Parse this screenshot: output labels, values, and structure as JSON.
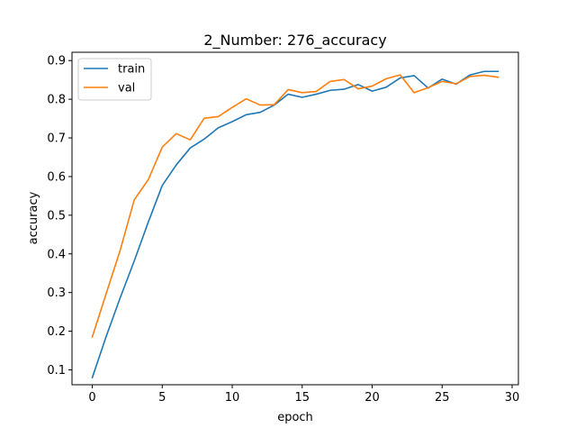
{
  "chart_data": {
    "type": "line",
    "title": "2_Number: 276_accuracy",
    "xlabel": "epoch",
    "ylabel": "accuracy",
    "xlim": [
      -1.45,
      30.45
    ],
    "ylim": [
      0.0615,
      0.9215
    ],
    "xticks": [
      0,
      5,
      10,
      15,
      20,
      25,
      30
    ],
    "yticks": [
      0.1,
      0.2,
      0.3,
      0.4,
      0.5,
      0.6,
      0.7,
      0.8,
      0.9
    ],
    "xtick_labels": [
      "0",
      "5",
      "10",
      "15",
      "20",
      "25",
      "30"
    ],
    "ytick_labels": [
      "0.1",
      "0.2",
      "0.3",
      "0.4",
      "0.5",
      "0.6",
      "0.7",
      "0.8",
      "0.9"
    ],
    "grid": false,
    "legend_position": "upper-left",
    "x": [
      0,
      1,
      2,
      3,
      4,
      5,
      6,
      7,
      8,
      9,
      10,
      11,
      12,
      13,
      14,
      15,
      16,
      17,
      18,
      19,
      20,
      21,
      22,
      23,
      24,
      25,
      26,
      27,
      28,
      29
    ],
    "series": [
      {
        "name": "train",
        "color": "#1f77b4",
        "values": [
          0.08,
          0.187,
          0.287,
          0.382,
          0.482,
          0.577,
          0.63,
          0.674,
          0.697,
          0.726,
          0.742,
          0.76,
          0.766,
          0.785,
          0.813,
          0.805,
          0.813,
          0.823,
          0.826,
          0.838,
          0.821,
          0.831,
          0.855,
          0.861,
          0.829,
          0.852,
          0.839,
          0.863,
          0.872,
          0.872
        ]
      },
      {
        "name": "val",
        "color": "#ff7f0e",
        "values": [
          0.185,
          0.298,
          0.41,
          0.54,
          0.592,
          0.676,
          0.711,
          0.695,
          0.751,
          0.755,
          0.779,
          0.801,
          0.785,
          0.786,
          0.825,
          0.817,
          0.82,
          0.846,
          0.851,
          0.827,
          0.834,
          0.853,
          0.863,
          0.817,
          0.83,
          0.846,
          0.84,
          0.859,
          0.862,
          0.857
        ]
      }
    ]
  }
}
